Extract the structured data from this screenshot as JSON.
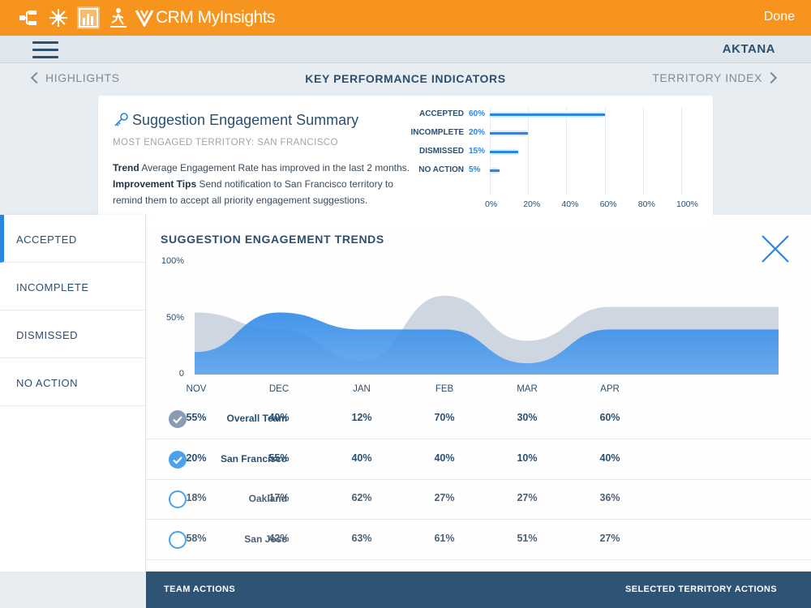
{
  "app": {
    "title": "CRM MyInsights",
    "done_label": "Done",
    "company": "AKTANA"
  },
  "toolbar": {
    "icons": [
      "org-chart-icon",
      "network-icon",
      "bar-chart-icon",
      "walking-person-icon"
    ]
  },
  "nav": {
    "prev_label": "HIGHLIGHTS",
    "title": "KEY PERFORMANCE INDICATORS",
    "next_label": "TERRITORY INDEX"
  },
  "card": {
    "title": "Suggestion Engagement Summary",
    "subtitle": "MOST ENGAGED TERRITORY: SAN FRANCISCO",
    "trend_label": "Trend",
    "trend_text": "Average Engagement Rate has improved in the last 2 months.",
    "tips_label": "Improvement Tips",
    "tips_text": "Send notification to San Francisco territory to remind them to accept all priority engagement suggestions.",
    "bars": [
      {
        "label": "ACCEPTED",
        "pct_label": "60%",
        "value": 60
      },
      {
        "label": "INCOMPLETE",
        "pct_label": "20%",
        "value": 20
      },
      {
        "label": "DISMISSED",
        "pct_label": "15%",
        "value": 15
      },
      {
        "label": "NO ACTION",
        "pct_label": "5%",
        "value": 5
      }
    ],
    "ticks": [
      "0%",
      "20%",
      "40%",
      "60%",
      "80%",
      "100%"
    ]
  },
  "side_menu": {
    "items": [
      "ACCEPTED",
      "INCOMPLETE",
      "DISMISSED",
      "NO ACTION"
    ],
    "active": "ACCEPTED"
  },
  "trends": {
    "title": "SUGGESTION ENGAGEMENT TRENDS",
    "y_labels": [
      "100%",
      "50%",
      "0"
    ],
    "months": [
      "NOV",
      "DEC",
      "JAN",
      "FEB",
      "MAR",
      "APR"
    ],
    "rows": [
      {
        "name": "Overall Team",
        "checked": true,
        "style": "grey",
        "values": [
          "55%",
          "40%",
          "12%",
          "70%",
          "30%",
          "60%"
        ]
      },
      {
        "name": "San Francisco",
        "checked": true,
        "style": "blue",
        "values": [
          "20%",
          "55%",
          "40%",
          "40%",
          "10%",
          "40%"
        ]
      },
      {
        "name": "Oakland",
        "checked": false,
        "style": "blue",
        "values": [
          "18%",
          "17%",
          "62%",
          "27%",
          "27%",
          "36%"
        ]
      },
      {
        "name": "San Jose",
        "checked": false,
        "style": "blue",
        "values": [
          "58%",
          "42%",
          "63%",
          "61%",
          "51%",
          "27%"
        ]
      }
    ]
  },
  "chart_data": {
    "type": "area",
    "title": "SUGGESTION ENGAGEMENT TRENDS",
    "x": [
      "NOV",
      "DEC",
      "JAN",
      "FEB",
      "MAR",
      "APR"
    ],
    "ylim": [
      0,
      100
    ],
    "series": [
      {
        "name": "Overall Team",
        "values": [
          55,
          40,
          12,
          70,
          30,
          60
        ],
        "color": "#cdd6e1"
      },
      {
        "name": "San Francisco",
        "values": [
          20,
          55,
          40,
          40,
          10,
          40
        ],
        "color": "#2a86e6"
      }
    ]
  },
  "footer": {
    "left_label": "TEAM ACTIONS",
    "right_label": "SELECTED TERRITORY ACTIONS"
  },
  "colors": {
    "orange": "#f7941d",
    "blue": "#2a86e6",
    "navy": "#2e5375"
  }
}
